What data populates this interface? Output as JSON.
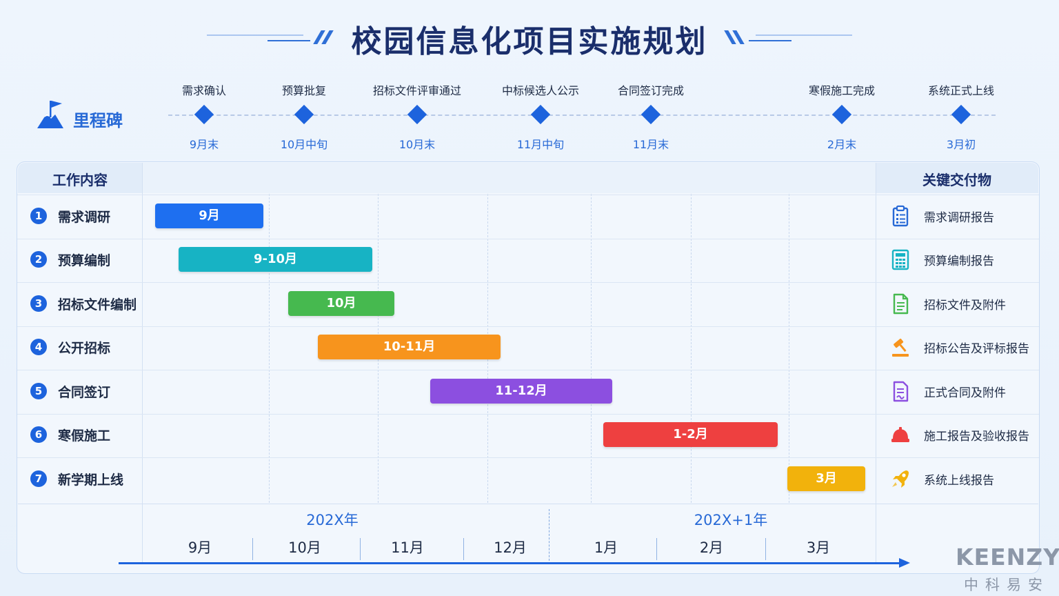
{
  "title": "校园信息化项目实施规划",
  "milestone_section_label": "里程碑",
  "milestones": [
    {
      "name": "需求确认",
      "date": "9月末"
    },
    {
      "name": "预算批复",
      "date": "10月中旬"
    },
    {
      "name": "招标文件评审通过",
      "date": "10月末"
    },
    {
      "name": "中标候选人公示",
      "date": "11月中旬"
    },
    {
      "name": "合同签订完成",
      "date": "11月末"
    },
    {
      "name": "寒假施工完成",
      "date": "2月末"
    },
    {
      "name": "系统正式上线",
      "date": "3月初"
    }
  ],
  "table": {
    "col_work": "工作内容",
    "col_deliverable": "关键交付物"
  },
  "tasks": [
    {
      "num": "1",
      "name": "需求调研",
      "bar_label": "9月",
      "color": "#1e6ff0",
      "deliverable": "需求调研报告",
      "icon": "clipboard-icon",
      "icon_color": "#2769d6"
    },
    {
      "num": "2",
      "name": "预算编制",
      "bar_label": "9-10月",
      "color": "#17b3c4",
      "deliverable": "预算编制报告",
      "icon": "calculator-icon",
      "icon_color": "#17b3c4"
    },
    {
      "num": "3",
      "name": "招标文件编制",
      "bar_label": "10月",
      "color": "#46b94f",
      "deliverable": "招标文件及附件",
      "icon": "document-icon",
      "icon_color": "#46b94f"
    },
    {
      "num": "4",
      "name": "公开招标",
      "bar_label": "10-11月",
      "color": "#f7941d",
      "deliverable": "招标公告及评标报告",
      "icon": "gavel-icon",
      "icon_color": "#f7941d"
    },
    {
      "num": "5",
      "name": "合同签订",
      "bar_label": "11-12月",
      "color": "#8c4fe0",
      "deliverable": "正式合同及附件",
      "icon": "contract-icon",
      "icon_color": "#8c4fe0"
    },
    {
      "num": "6",
      "name": "寒假施工",
      "bar_label": "1-2月",
      "color": "#ee4040",
      "deliverable": "施工报告及验收报告",
      "icon": "hardhat-icon",
      "icon_color": "#ee4040"
    },
    {
      "num": "7",
      "name": "新学期上线",
      "bar_label": "3月",
      "color": "#f2b20c",
      "deliverable": "系统上线报告",
      "icon": "rocket-icon",
      "icon_color": "#f2b20c"
    }
  ],
  "timeline": {
    "years": [
      "202X年",
      "202X+1年"
    ],
    "months": [
      "9月",
      "10月",
      "11月",
      "12月",
      "1月",
      "2月",
      "3月"
    ]
  },
  "brand": {
    "en": "KEENZY",
    "cn": "中科易安"
  }
}
